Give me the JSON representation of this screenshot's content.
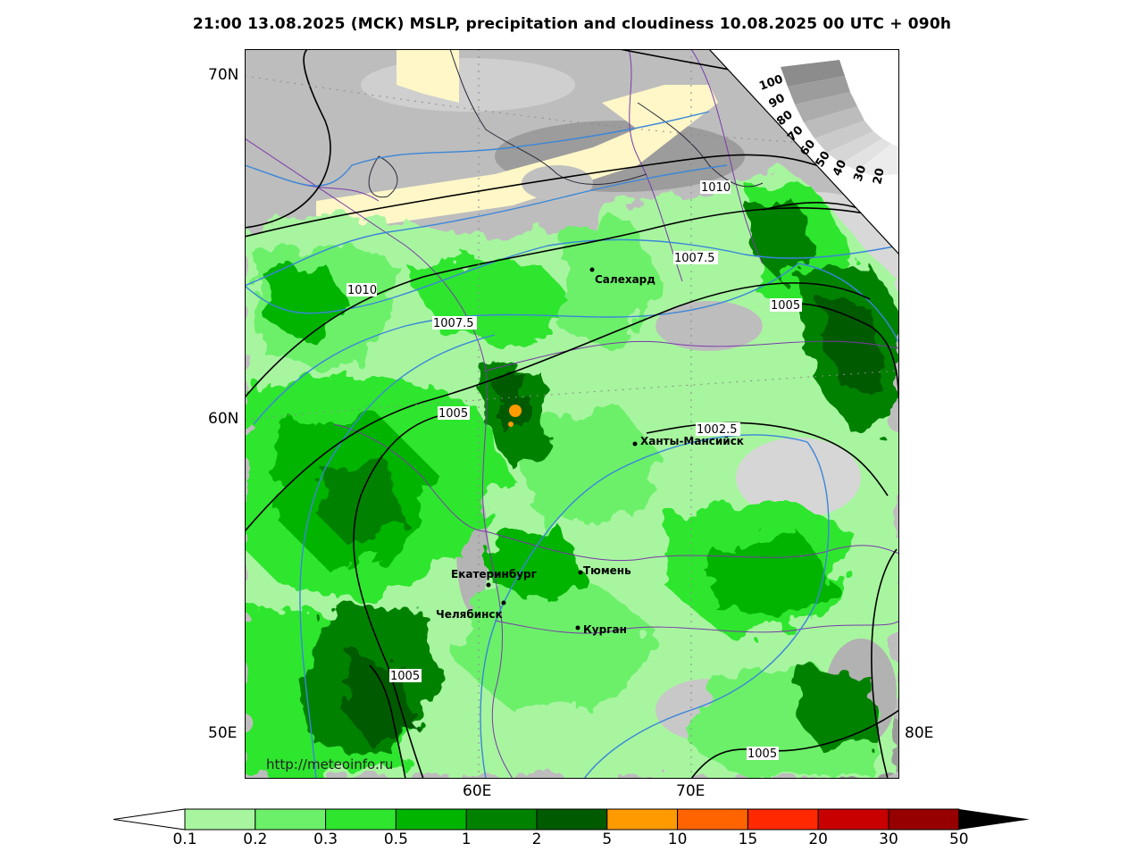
{
  "title": "21:00 13.08.2025 (МСК) MSLP, precipitation and cloudiness 10.08.2025 00 UTC + 090h",
  "watermark": "http://meteoinfo.ru",
  "lat_labels": [
    "70N",
    "60N"
  ],
  "lon_labels_left": [
    "50E"
  ],
  "lon_labels_right": [
    "80E"
  ],
  "lon_labels_bottom": [
    "60E",
    "70E"
  ],
  "cities": [
    {
      "name": "Салехард"
    },
    {
      "name": "Ханты-Мансийск"
    },
    {
      "name": "Екатеринбург"
    },
    {
      "name": "Тюмень"
    },
    {
      "name": "Челябинск"
    },
    {
      "name": "Курган"
    }
  ],
  "isobar_labels": [
    "1010",
    "1007.5",
    "1010",
    "1007.5",
    "1005",
    "1005",
    "1002.5",
    "1005",
    "1005"
  ],
  "cloud_scale_labels": [
    "100",
    "90",
    "80",
    "70",
    "60",
    "50",
    "40",
    "30",
    "20"
  ],
  "colorbar": {
    "labels": [
      "0.1",
      "0.2",
      "0.3",
      "0.5",
      "1",
      "2",
      "5",
      "10",
      "15",
      "20",
      "30",
      "50"
    ],
    "colors": [
      "#a8f5a0",
      "#6cf06a",
      "#2ee62e",
      "#00b400",
      "#008200",
      "#005a00",
      "#ff9a00",
      "#ff6400",
      "#ff2800",
      "#c80000",
      "#960000"
    ]
  },
  "colors": {
    "green_light": "#a8f5a0",
    "green_mid": "#2ee62e",
    "green_dark": "#005a00",
    "cloud_gray": "#a9a9a9",
    "snow_yellow": "#fff7c8",
    "isobar": "#000000",
    "isotherm": "#3a86d8",
    "border": "#7a3aa8"
  }
}
